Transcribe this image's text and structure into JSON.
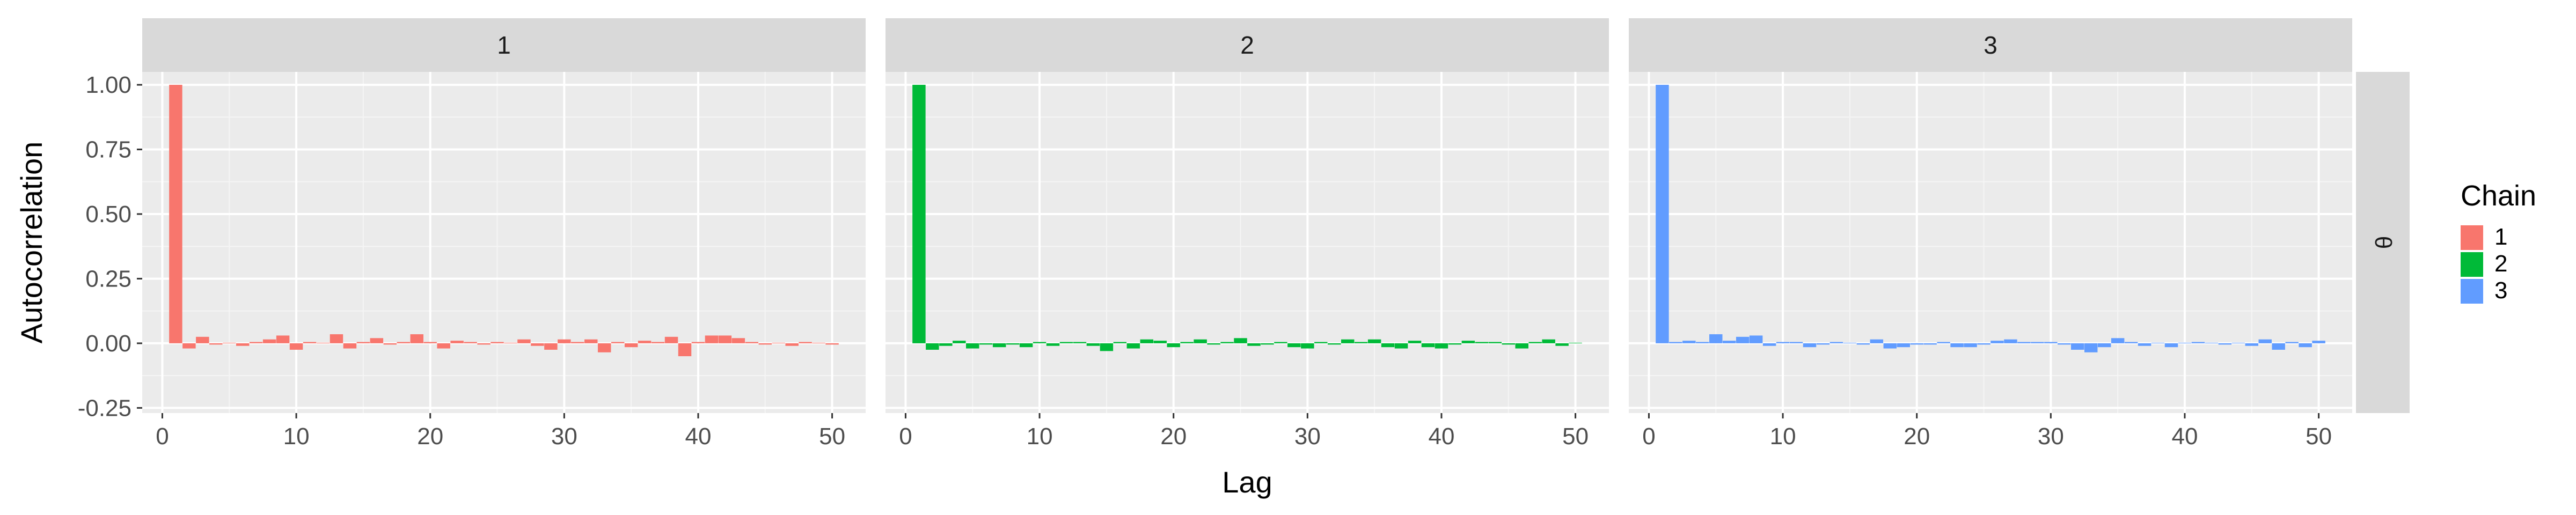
{
  "chart_data": {
    "type": "bar",
    "xlabel": "Lag",
    "ylabel": "Autocorrelation",
    "xlim": [
      -1.5,
      52.5
    ],
    "ylim": [
      -0.27,
      1.05
    ],
    "xticks": [
      0,
      10,
      20,
      30,
      40,
      50
    ],
    "yticks": [
      -0.25,
      0.0,
      0.25,
      0.5,
      0.75,
      1.0
    ],
    "ytick_labels": [
      "-0.25",
      "0.00",
      "0.25",
      "0.50",
      "0.75",
      "1.00"
    ],
    "grid": true,
    "facet_row_label": "θ",
    "legend": {
      "title": "Chain",
      "position": "right",
      "entries": [
        {
          "label": "1",
          "color": "#F8766D"
        },
        {
          "label": "2",
          "color": "#00BA38"
        },
        {
          "label": "3",
          "color": "#619CFF"
        }
      ]
    },
    "panels": [
      {
        "strip_label": "1",
        "color": "#F8766D",
        "lags": [
          1,
          2,
          3,
          4,
          5,
          6,
          7,
          8,
          9,
          10,
          11,
          12,
          13,
          14,
          15,
          16,
          17,
          18,
          19,
          20,
          21,
          22,
          23,
          24,
          25,
          26,
          27,
          28,
          29,
          30,
          31,
          32,
          33,
          34,
          35,
          36,
          37,
          38,
          39,
          40,
          41,
          42,
          43,
          44,
          45,
          46,
          47,
          48,
          49,
          50
        ],
        "values": [
          1.0,
          -0.02,
          0.025,
          -0.005,
          0.002,
          -0.01,
          0.005,
          0.015,
          0.03,
          -0.025,
          0.005,
          0.002,
          0.035,
          -0.02,
          0.005,
          0.02,
          -0.005,
          0.005,
          0.035,
          0.005,
          -0.02,
          0.01,
          0.005,
          -0.005,
          0.005,
          0.002,
          0.015,
          -0.01,
          -0.025,
          0.015,
          0.005,
          0.015,
          -0.035,
          0.005,
          -0.015,
          0.01,
          0.005,
          0.025,
          -0.05,
          0.005,
          0.03,
          0.03,
          0.02,
          0.005,
          -0.005,
          0.002,
          -0.01,
          0.005,
          0.002,
          -0.005
        ]
      },
      {
        "strip_label": "2",
        "color": "#00BA38",
        "lags": [
          1,
          2,
          3,
          4,
          5,
          6,
          7,
          8,
          9,
          10,
          11,
          12,
          13,
          14,
          15,
          16,
          17,
          18,
          19,
          20,
          21,
          22,
          23,
          24,
          25,
          26,
          27,
          28,
          29,
          30,
          31,
          32,
          33,
          34,
          35,
          36,
          37,
          38,
          39,
          40,
          41,
          42,
          43,
          44,
          45,
          46,
          47,
          48,
          49,
          50
        ],
        "values": [
          1.0,
          -0.025,
          -0.01,
          0.01,
          -0.02,
          -0.005,
          -0.015,
          -0.005,
          -0.015,
          0.005,
          -0.01,
          0.005,
          0.005,
          -0.01,
          -0.03,
          0.005,
          -0.02,
          0.015,
          0.01,
          -0.015,
          0.005,
          0.015,
          -0.005,
          0.005,
          0.02,
          -0.01,
          -0.005,
          0.005,
          -0.015,
          -0.02,
          0.005,
          -0.005,
          0.015,
          0.005,
          0.015,
          -0.015,
          -0.02,
          0.01,
          -0.015,
          -0.02,
          -0.005,
          0.01,
          0.005,
          0.005,
          -0.005,
          -0.02,
          0.005,
          0.015,
          -0.01,
          0.002
        ]
      },
      {
        "strip_label": "3",
        "color": "#619CFF",
        "lags": [
          1,
          2,
          3,
          4,
          5,
          6,
          7,
          8,
          9,
          10,
          11,
          12,
          13,
          14,
          15,
          16,
          17,
          18,
          19,
          20,
          21,
          22,
          23,
          24,
          25,
          26,
          27,
          28,
          29,
          30,
          31,
          32,
          33,
          34,
          35,
          36,
          37,
          38,
          39,
          40,
          41,
          42,
          43,
          44,
          45,
          46,
          47,
          48,
          49,
          50
        ],
        "values": [
          1.0,
          0.005,
          0.01,
          0.005,
          0.035,
          0.01,
          0.025,
          0.03,
          -0.01,
          0.005,
          0.005,
          -0.015,
          -0.005,
          0.005,
          0.002,
          -0.005,
          0.015,
          -0.02,
          -0.015,
          -0.005,
          -0.005,
          0.005,
          -0.015,
          -0.015,
          -0.005,
          0.01,
          0.015,
          0.005,
          0.005,
          0.005,
          -0.005,
          -0.025,
          -0.035,
          -0.015,
          0.02,
          0.005,
          -0.01,
          0.002,
          -0.015,
          0.002,
          0.005,
          0.002,
          -0.005,
          0.002,
          -0.01,
          0.015,
          -0.025,
          0.005,
          -0.015,
          0.01
        ]
      }
    ]
  }
}
